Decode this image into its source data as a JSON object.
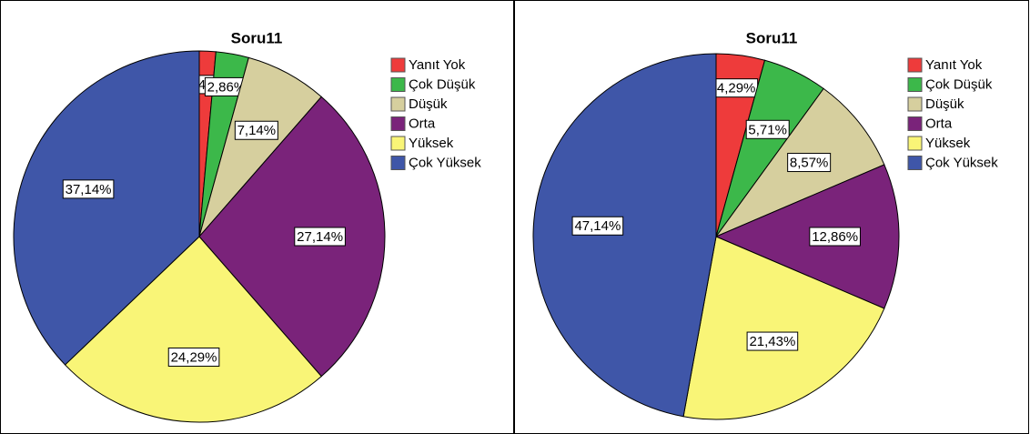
{
  "chart_data": [
    {
      "type": "pie",
      "title": "Soru11",
      "categories": [
        "Yanıt Yok",
        "Çok Düşük",
        "Düşük",
        "Orta",
        "Yüksek",
        "Çok Yüksek"
      ],
      "values": [
        1.43,
        2.86,
        7.14,
        27.14,
        24.29,
        37.14
      ],
      "value_labels": [
        "1,43%",
        "2,86%",
        "7,14%",
        "27,14%",
        "24,29%",
        "37,14%"
      ],
      "colors": [
        "#ee3b3b",
        "#3cb84a",
        "#d6cf9e",
        "#7a237a",
        "#f9f577",
        "#3f56a8"
      ]
    },
    {
      "type": "pie",
      "title": "Soru11",
      "categories": [
        "Yanıt Yok",
        "Çok Düşük",
        "Düşük",
        "Orta",
        "Yüksek",
        "Çok Yüksek"
      ],
      "values": [
        4.29,
        5.71,
        8.57,
        12.86,
        21.43,
        47.14
      ],
      "value_labels": [
        "4,29%",
        "5,71%",
        "8,57%",
        "12,86%",
        "21,43%",
        "47,14%"
      ],
      "colors": [
        "#ee3b3b",
        "#3cb84a",
        "#d6cf9e",
        "#7a237a",
        "#f9f577",
        "#3f56a8"
      ]
    }
  ]
}
